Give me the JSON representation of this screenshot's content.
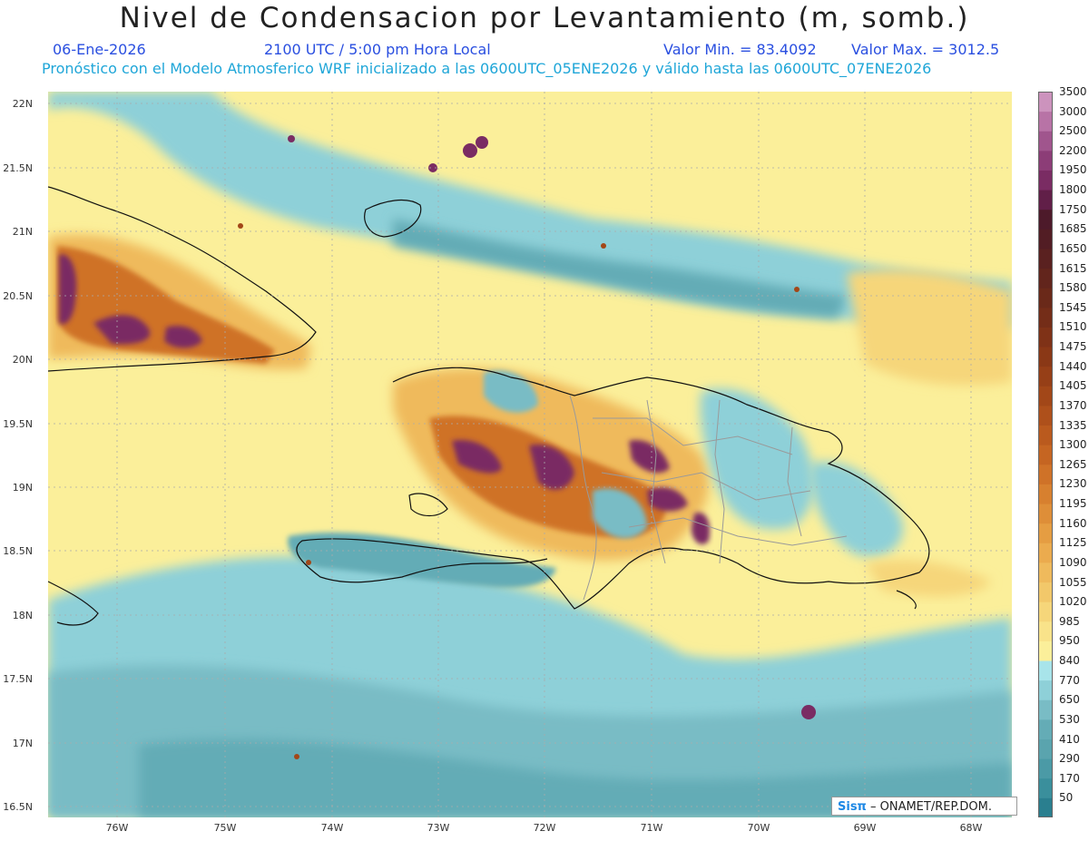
{
  "header": {
    "title": "Nivel de Condensacion por Levantamiento (m, somb.)",
    "date": "06-Ene-2026",
    "time": "2100 UTC / 5:00 pm Hora Local",
    "min_label": "Valor Min. = 83.4092",
    "max_label": "Valor Max. = 3012.5",
    "model_line": "Pronóstico con el Modelo Atmosferico WRF inicializado a las 0600UTC_05ENE2026 y válido hasta las  0600UTC_07ENE2026"
  },
  "axes": {
    "lat_labels": [
      "22N",
      "21.5N",
      "21N",
      "20.5N",
      "20N",
      "19.5N",
      "19N",
      "18.5N",
      "18N",
      "17.5N",
      "17N",
      "16.5N"
    ],
    "lon_labels": [
      "76W",
      "75W",
      "74W",
      "73W",
      "72W",
      "71W",
      "70W",
      "69W",
      "68W"
    ]
  },
  "colorbar": {
    "levels": [
      "50",
      "170",
      "290",
      "410",
      "530",
      "650",
      "770",
      "840",
      "950",
      "985",
      "1020",
      "1055",
      "1090",
      "1125",
      "1160",
      "1195",
      "1230",
      "1265",
      "1300",
      "1335",
      "1370",
      "1405",
      "1440",
      "1475",
      "1510",
      "1545",
      "1580",
      "1615",
      "1650",
      "1685",
      "1750",
      "1800",
      "1950",
      "2200",
      "2500",
      "3000",
      "3500"
    ],
    "colors": [
      "#2a7f8f",
      "#3a8f9c",
      "#4b9aa6",
      "#5aa4ae",
      "#64acb6",
      "#79bcc5",
      "#8ed0d8",
      "#a8e4ea",
      "#fbef9a",
      "#f9e38a",
      "#f6d67a",
      "#f2c86a",
      "#efba5c",
      "#ebab4e",
      "#e59d42",
      "#de8e38",
      "#d7802f",
      "#cf7228",
      "#c56522",
      "#ba5a1e",
      "#ae501b",
      "#a24718",
      "#963f17",
      "#8a3816",
      "#7f3217",
      "#742d18",
      "#6a2919",
      "#62251c",
      "#5a2120",
      "#521d24",
      "#4d1a2a",
      "#611f48",
      "#7a2c63",
      "#8c3d77",
      "#a0558d",
      "#b873a6",
      "#cc93bd"
    ]
  },
  "credit": {
    "logo": "Sisπ",
    "text": "– ONAMET/REP.DOM."
  }
}
